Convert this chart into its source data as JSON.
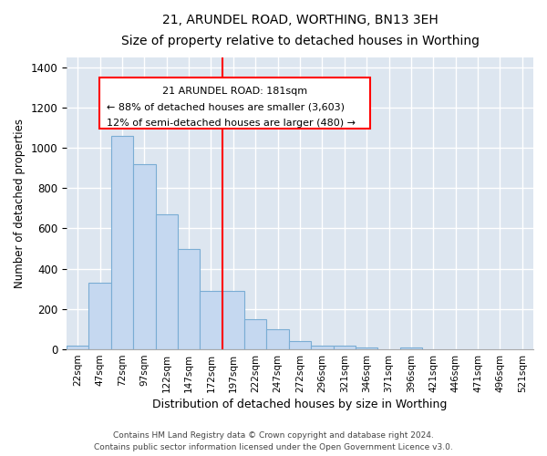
{
  "title": "21, ARUNDEL ROAD, WORTHING, BN13 3EH",
  "subtitle": "Size of property relative to detached houses in Worthing",
  "xlabel": "Distribution of detached houses by size in Worthing",
  "ylabel": "Number of detached properties",
  "footnote1": "Contains HM Land Registry data © Crown copyright and database right 2024.",
  "footnote2": "Contains public sector information licensed under the Open Government Licence v3.0.",
  "categories": [
    "22sqm",
    "47sqm",
    "72sqm",
    "97sqm",
    "122sqm",
    "147sqm",
    "172sqm",
    "197sqm",
    "222sqm",
    "247sqm",
    "272sqm",
    "296sqm",
    "321sqm",
    "346sqm",
    "371sqm",
    "396sqm",
    "421sqm",
    "446sqm",
    "471sqm",
    "496sqm",
    "521sqm"
  ],
  "values": [
    20,
    330,
    1060,
    920,
    670,
    500,
    290,
    290,
    150,
    100,
    40,
    20,
    20,
    10,
    0,
    10,
    0,
    0,
    0,
    0,
    0
  ],
  "bar_color": "#c5d8f0",
  "bar_edge_color": "#7aadd4",
  "background_color": "#dde6f0",
  "grid_color": "#ffffff",
  "annotation_line1": "21 ARUNDEL ROAD: 181sqm",
  "annotation_line2": "← 88% of detached houses are smaller (3,603)",
  "annotation_line3": "12% of semi-detached houses are larger (480) →",
  "ylim": [
    0,
    1450
  ],
  "bin_width": 25,
  "red_line_index": 6.5,
  "fig_bg_color": "#ffffff"
}
